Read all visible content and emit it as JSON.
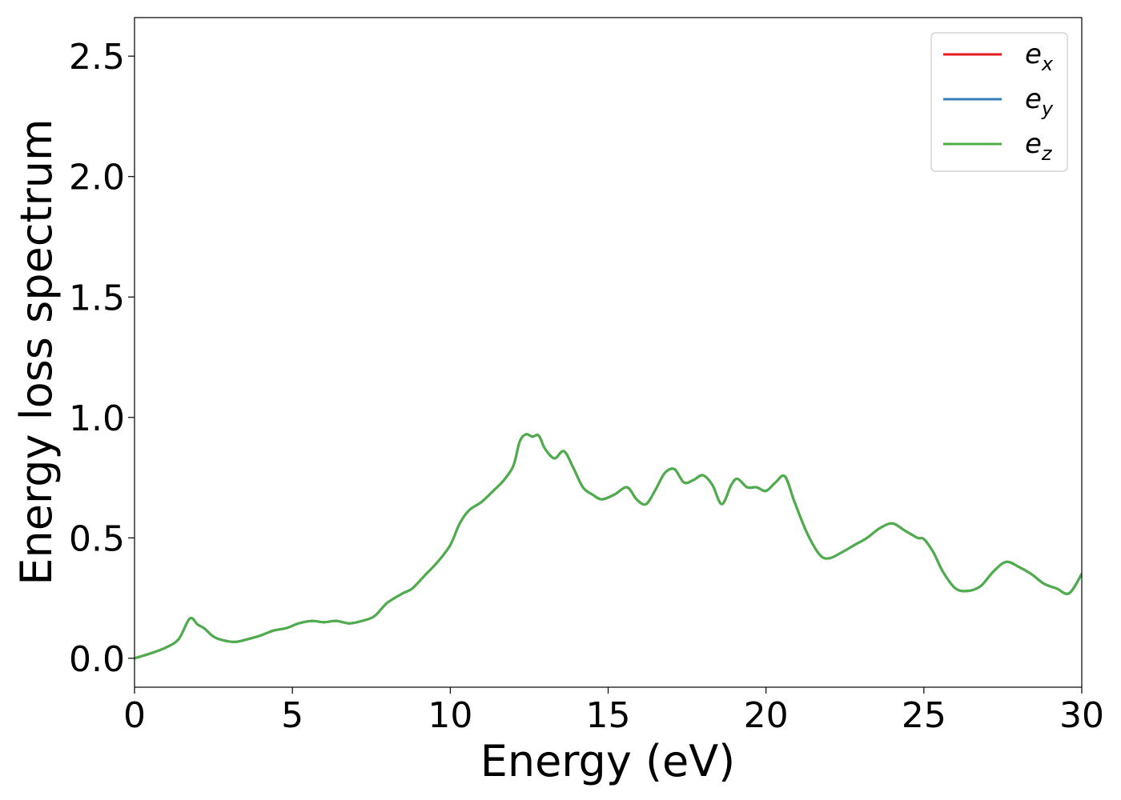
{
  "chart_data": {
    "type": "line",
    "title": "",
    "xlabel": "Energy (eV)",
    "ylabel": "Energy loss spectrum",
    "xlim": [
      0,
      30
    ],
    "ylim": [
      -0.12,
      2.66
    ],
    "xticks": [
      0,
      5,
      10,
      15,
      20,
      25,
      30
    ],
    "xtick_labels": [
      "0",
      "5",
      "10",
      "15",
      "20",
      "25",
      "30"
    ],
    "yticks": [
      0.0,
      0.5,
      1.0,
      1.5,
      2.0,
      2.5
    ],
    "ytick_labels": [
      "0.0",
      "0.5",
      "1.0",
      "1.5",
      "2.0",
      "2.5"
    ],
    "grid": false,
    "legend_position": "top-right",
    "series": [
      {
        "name_base": "e",
        "name_sub": "x",
        "color": "#e41a1c",
        "x": [
          0,
          0.5,
          1.0,
          1.4,
          1.75,
          2.0,
          2.2,
          2.5,
          2.8,
          3.2,
          3.6,
          4.0,
          4.4,
          4.8,
          5.2,
          5.6,
          6.0,
          6.4,
          6.8,
          7.2,
          7.6,
          8.0,
          8.5,
          8.8,
          9.2,
          9.6,
          10.0,
          10.3,
          10.6,
          11.0,
          11.4,
          11.7,
          12.0,
          12.2,
          12.4,
          12.6,
          12.8,
          13.0,
          13.3,
          13.6,
          13.9,
          14.2,
          14.5,
          14.8,
          15.2,
          15.6,
          15.9,
          16.2,
          16.5,
          16.8,
          17.1,
          17.4,
          17.7,
          18.0,
          18.3,
          18.6,
          18.9,
          19.1,
          19.4,
          19.7,
          20.0,
          20.3,
          20.6,
          20.9,
          21.3,
          21.7,
          22.0,
          22.4,
          22.8,
          23.2,
          23.6,
          24.0,
          24.4,
          24.8,
          25.0,
          25.3,
          25.6,
          26.0,
          26.4,
          26.8,
          27.2,
          27.6,
          28.0,
          28.4,
          28.8,
          29.2,
          29.6,
          30.0
        ],
        "y": [
          0.0,
          0.02,
          0.045,
          0.08,
          0.165,
          0.14,
          0.125,
          0.09,
          0.075,
          0.068,
          0.08,
          0.095,
          0.115,
          0.125,
          0.145,
          0.155,
          0.15,
          0.155,
          0.145,
          0.155,
          0.175,
          0.23,
          0.27,
          0.29,
          0.345,
          0.4,
          0.47,
          0.56,
          0.615,
          0.65,
          0.7,
          0.74,
          0.8,
          0.9,
          0.93,
          0.92,
          0.925,
          0.87,
          0.83,
          0.86,
          0.79,
          0.71,
          0.68,
          0.66,
          0.68,
          0.71,
          0.66,
          0.64,
          0.7,
          0.77,
          0.785,
          0.73,
          0.74,
          0.76,
          0.72,
          0.64,
          0.72,
          0.745,
          0.71,
          0.71,
          0.695,
          0.73,
          0.755,
          0.65,
          0.52,
          0.43,
          0.415,
          0.44,
          0.47,
          0.5,
          0.54,
          0.56,
          0.53,
          0.5,
          0.495,
          0.44,
          0.36,
          0.29,
          0.28,
          0.3,
          0.36,
          0.4,
          0.38,
          0.35,
          0.31,
          0.29,
          0.27,
          0.35
        ]
      },
      {
        "name_base": "e",
        "name_sub": "y",
        "color": "#377eb8",
        "x": [
          0,
          0.5,
          1.0,
          1.4,
          1.75,
          2.0,
          2.2,
          2.5,
          2.8,
          3.2,
          3.6,
          4.0,
          4.4,
          4.8,
          5.2,
          5.6,
          6.0,
          6.4,
          6.8,
          7.2,
          7.6,
          8.0,
          8.5,
          8.8,
          9.2,
          9.6,
          10.0,
          10.3,
          10.6,
          11.0,
          11.4,
          11.7,
          12.0,
          12.2,
          12.4,
          12.6,
          12.8,
          13.0,
          13.3,
          13.6,
          13.9,
          14.2,
          14.5,
          14.8,
          15.2,
          15.6,
          15.9,
          16.2,
          16.5,
          16.8,
          17.1,
          17.4,
          17.7,
          18.0,
          18.3,
          18.6,
          18.9,
          19.1,
          19.4,
          19.7,
          20.0,
          20.3,
          20.6,
          20.9,
          21.3,
          21.7,
          22.0,
          22.4,
          22.8,
          23.2,
          23.6,
          24.0,
          24.4,
          24.8,
          25.0,
          25.3,
          25.6,
          26.0,
          26.4,
          26.8,
          27.2,
          27.6,
          28.0,
          28.4,
          28.8,
          29.2,
          29.6,
          30.0
        ],
        "y": [
          0.0,
          0.02,
          0.045,
          0.08,
          0.165,
          0.14,
          0.125,
          0.09,
          0.075,
          0.068,
          0.08,
          0.095,
          0.115,
          0.125,
          0.145,
          0.155,
          0.15,
          0.155,
          0.145,
          0.155,
          0.175,
          0.23,
          0.27,
          0.29,
          0.345,
          0.4,
          0.47,
          0.56,
          0.615,
          0.65,
          0.7,
          0.74,
          0.8,
          0.9,
          0.93,
          0.92,
          0.925,
          0.87,
          0.83,
          0.86,
          0.79,
          0.71,
          0.68,
          0.66,
          0.68,
          0.71,
          0.66,
          0.64,
          0.7,
          0.77,
          0.785,
          0.73,
          0.74,
          0.76,
          0.72,
          0.64,
          0.72,
          0.745,
          0.71,
          0.71,
          0.695,
          0.73,
          0.755,
          0.65,
          0.52,
          0.43,
          0.415,
          0.44,
          0.47,
          0.5,
          0.54,
          0.56,
          0.53,
          0.5,
          0.495,
          0.44,
          0.36,
          0.29,
          0.28,
          0.3,
          0.36,
          0.4,
          0.38,
          0.35,
          0.31,
          0.29,
          0.27,
          0.35
        ]
      },
      {
        "name_base": "e",
        "name_sub": "z",
        "color": "#4daf4a",
        "x": [
          0,
          0.5,
          1.0,
          1.4,
          1.75,
          2.0,
          2.2,
          2.5,
          2.8,
          3.2,
          3.6,
          4.0,
          4.4,
          4.8,
          5.2,
          5.6,
          6.0,
          6.4,
          6.8,
          7.2,
          7.6,
          8.0,
          8.5,
          8.8,
          9.2,
          9.6,
          10.0,
          10.3,
          10.6,
          11.0,
          11.4,
          11.7,
          12.0,
          12.2,
          12.4,
          12.6,
          12.8,
          13.0,
          13.3,
          13.6,
          13.9,
          14.2,
          14.5,
          14.8,
          15.2,
          15.6,
          15.9,
          16.2,
          16.5,
          16.8,
          17.1,
          17.4,
          17.7,
          18.0,
          18.3,
          18.6,
          18.9,
          19.1,
          19.4,
          19.7,
          20.0,
          20.3,
          20.6,
          20.9,
          21.3,
          21.7,
          22.0,
          22.4,
          22.8,
          23.2,
          23.6,
          24.0,
          24.4,
          24.8,
          25.0,
          25.3,
          25.6,
          26.0,
          26.4,
          26.8,
          27.2,
          27.6,
          28.0,
          28.4,
          28.8,
          29.2,
          29.6,
          30.0
        ],
        "y": [
          0.0,
          0.02,
          0.045,
          0.08,
          0.165,
          0.14,
          0.125,
          0.09,
          0.075,
          0.068,
          0.08,
          0.095,
          0.115,
          0.125,
          0.145,
          0.155,
          0.15,
          0.155,
          0.145,
          0.155,
          0.175,
          0.23,
          0.27,
          0.29,
          0.345,
          0.4,
          0.47,
          0.56,
          0.615,
          0.65,
          0.7,
          0.74,
          0.8,
          0.9,
          0.93,
          0.92,
          0.925,
          0.87,
          0.83,
          0.86,
          0.79,
          0.71,
          0.68,
          0.66,
          0.68,
          0.71,
          0.66,
          0.64,
          0.7,
          0.77,
          0.785,
          0.73,
          0.74,
          0.76,
          0.72,
          0.64,
          0.72,
          0.745,
          0.71,
          0.71,
          0.695,
          0.73,
          0.755,
          0.65,
          0.52,
          0.43,
          0.415,
          0.44,
          0.47,
          0.5,
          0.54,
          0.56,
          0.53,
          0.5,
          0.495,
          0.44,
          0.36,
          0.29,
          0.28,
          0.3,
          0.36,
          0.4,
          0.38,
          0.35,
          0.31,
          0.29,
          0.27,
          0.35
        ]
      }
    ]
  }
}
